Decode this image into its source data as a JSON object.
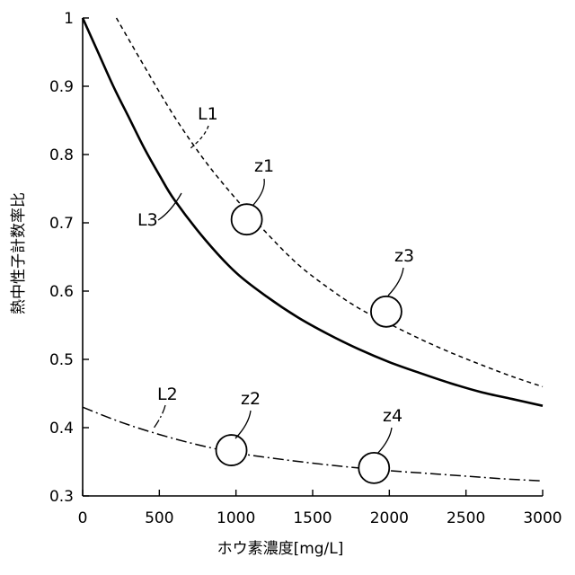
{
  "chart_data": {
    "type": "line",
    "xlabel": "ホウ素濃度[mg/L]",
    "ylabel": "熱中性子計数率比",
    "xlim": [
      0,
      3000
    ],
    "ylim": [
      0.3,
      1.0
    ],
    "xticks": [
      "0",
      "500",
      "1000",
      "1500",
      "2000",
      "2500",
      "3000"
    ],
    "yticks": [
      "0.3",
      "0.4",
      "0.5",
      "0.6",
      "0.7",
      "0.8",
      "0.9",
      "1"
    ],
    "grid": false,
    "series": [
      {
        "name": "L1",
        "style": "dashed",
        "x": [
          220,
          400,
          600,
          800,
          1000,
          1200,
          1400,
          1600,
          1800,
          2000,
          2200,
          2400,
          2600,
          2800,
          3000
        ],
        "y": [
          1.0,
          0.93,
          0.855,
          0.79,
          0.735,
          0.685,
          0.64,
          0.605,
          0.575,
          0.552,
          0.53,
          0.51,
          0.492,
          0.475,
          0.46
        ]
      },
      {
        "name": "L3",
        "style": "solid",
        "x": [
          0,
          100,
          200,
          300,
          400,
          500,
          600,
          800,
          1000,
          1200,
          1400,
          1600,
          1800,
          2000,
          2200,
          2400,
          2600,
          2800,
          3000
        ],
        "y": [
          1.0,
          0.95,
          0.9,
          0.855,
          0.81,
          0.77,
          0.733,
          0.675,
          0.627,
          0.592,
          0.562,
          0.537,
          0.515,
          0.496,
          0.48,
          0.465,
          0.452,
          0.442,
          0.432
        ]
      },
      {
        "name": "L2",
        "style": "dashdot",
        "x": [
          0,
          250,
          500,
          750,
          1000,
          1250,
          1500,
          1750,
          2000,
          2250,
          2500,
          2750,
          3000
        ],
        "y": [
          0.43,
          0.408,
          0.39,
          0.375,
          0.363,
          0.355,
          0.348,
          0.342,
          0.337,
          0.333,
          0.329,
          0.325,
          0.322
        ]
      }
    ],
    "markers": [
      {
        "label": "z1",
        "x": 1070,
        "y": 0.705
      },
      {
        "label": "z2",
        "x": 970,
        "y": 0.367
      },
      {
        "label": "z3",
        "x": 1980,
        "y": 0.57
      },
      {
        "label": "z4",
        "x": 1900,
        "y": 0.341
      }
    ],
    "annotations": [
      "L1",
      "L2",
      "L3"
    ]
  }
}
